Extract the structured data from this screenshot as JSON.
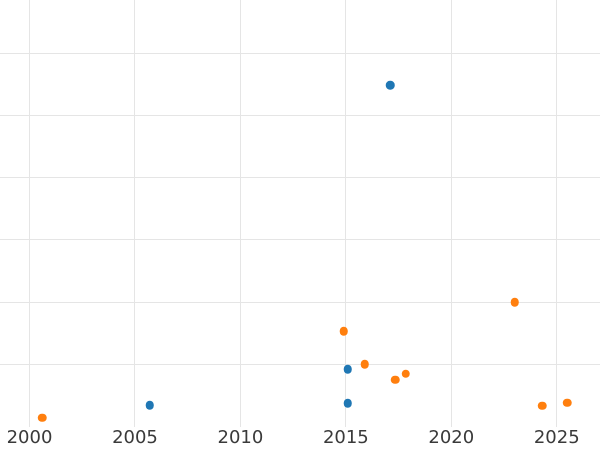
{
  "chart_data": {
    "type": "scatter",
    "title": "",
    "xlabel": "",
    "ylabel": "",
    "grid": true,
    "legend_position": "none",
    "x_tick_labels": [
      "2000",
      "2005",
      "2010",
      "2015",
      "2020",
      "2025"
    ],
    "x_ticks": [
      2000,
      2005,
      2010,
      2015,
      2020,
      2025
    ],
    "xlim": [
      1998.6,
      2027.05
    ],
    "ylim": [
      0,
      6.86
    ],
    "y_gridline_values": [
      1,
      2,
      3,
      4,
      5,
      6
    ],
    "y_axis_note": "y-axis tick labels are cropped outside the visible image; y values estimated in gridline units above the bottom edge",
    "colors": {
      "series_blue": "#1f77b4",
      "series_orange": "#ff7f0e",
      "gridline": "#e5e5e5",
      "tick_label": "#3a3a3a",
      "background": "#ffffff"
    },
    "series": [
      {
        "name": "series-blue",
        "color": "#1f77b4",
        "marker": "circle",
        "points": [
          {
            "x": 2017.1,
            "y": 5.49
          },
          {
            "x": 2005.7,
            "y": 0.34
          },
          {
            "x": 2015.1,
            "y": 0.92
          },
          {
            "x": 2015.1,
            "y": 0.37
          }
        ]
      },
      {
        "name": "series-orange",
        "color": "#ff7f0e",
        "marker": "circle",
        "points": [
          {
            "x": 2000.6,
            "y": 0.14
          },
          {
            "x": 2014.9,
            "y": 1.53
          },
          {
            "x": 2015.9,
            "y": 1.0
          },
          {
            "x": 2017.35,
            "y": 0.75
          },
          {
            "x": 2017.85,
            "y": 0.85
          },
          {
            "x": 2023.0,
            "y": 2.0
          },
          {
            "x": 2024.3,
            "y": 0.33
          },
          {
            "x": 2025.5,
            "y": 0.38
          }
        ]
      }
    ]
  }
}
